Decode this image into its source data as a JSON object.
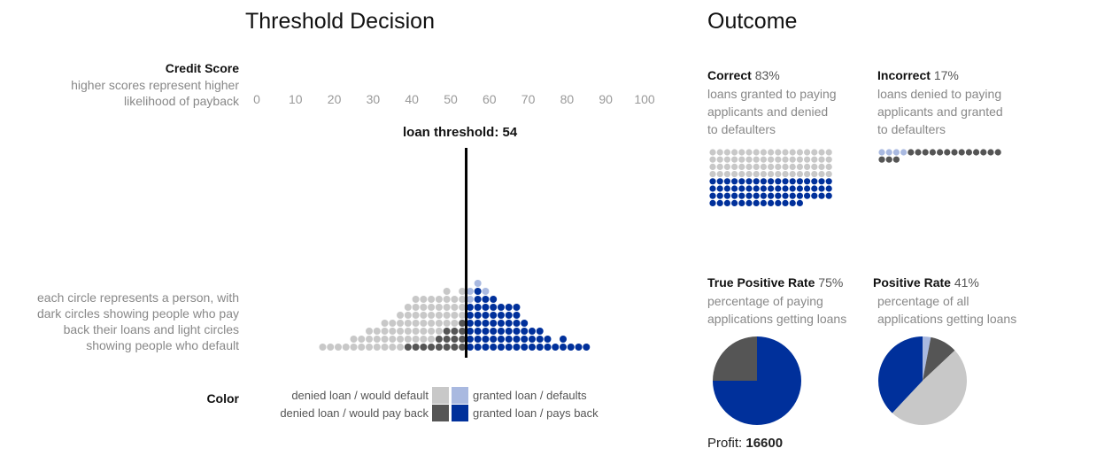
{
  "threshold": {
    "title": "Threshold Decision",
    "credit_score_label": "Credit Score",
    "credit_score_desc_1": "higher scores represent higher",
    "credit_score_desc_2": "likelihood of payback",
    "axis_ticks": [
      "0",
      "10",
      "20",
      "30",
      "40",
      "50",
      "60",
      "70",
      "80",
      "90",
      "100"
    ],
    "threshold_label": "loan threshold:",
    "threshold_value": 54,
    "circle_desc": [
      "each circle represents a person, with",
      "dark circles showing people who pay",
      "back their loans and light circles",
      "showing people who default"
    ],
    "color_label": "Color",
    "legend": {
      "denied_default": "denied loan / would default",
      "denied_pay": "denied loan / would pay back",
      "granted_default": "granted loan / defaults",
      "granted_pay": "granted loan / pays back"
    }
  },
  "colors": {
    "denied_default": "#c8c8c8",
    "denied_pay": "#555555",
    "granted_default": "#a9b9e0",
    "granted_pay": "#00309b"
  },
  "outcome": {
    "title": "Outcome",
    "correct": {
      "label": "Correct",
      "value": "83%",
      "desc": [
        "loans granted to paying",
        "applicants and denied",
        "to defaulters"
      ]
    },
    "incorrect": {
      "label": "Incorrect",
      "value": "17%",
      "desc": [
        "loans denied to paying",
        "applicants and granted",
        "to defaulters"
      ]
    },
    "tpr": {
      "label": "True Positive Rate",
      "value": "75%",
      "desc": [
        "percentage of paying",
        "applications getting loans"
      ]
    },
    "pos_rate": {
      "label": "Positive Rate",
      "value": "41%",
      "desc": [
        "percentage of all",
        "applications getting loans"
      ]
    },
    "profit_label": "Profit:",
    "profit_value": "16600"
  },
  "chart_data": [
    {
      "type": "scatter",
      "title": "Threshold Decision",
      "xlabel": "Credit Score",
      "xlim": [
        0,
        100
      ],
      "x_ticks": [
        0,
        10,
        20,
        30,
        40,
        50,
        60,
        70,
        80,
        90,
        100
      ],
      "threshold": 54,
      "columns": [
        {
          "x": 17,
          "default": 1,
          "pay": 0
        },
        {
          "x": 19,
          "default": 1,
          "pay": 0
        },
        {
          "x": 21,
          "default": 1,
          "pay": 0
        },
        {
          "x": 23,
          "default": 1,
          "pay": 0
        },
        {
          "x": 25,
          "default": 2,
          "pay": 0
        },
        {
          "x": 27,
          "default": 2,
          "pay": 0
        },
        {
          "x": 29,
          "default": 3,
          "pay": 0
        },
        {
          "x": 31,
          "default": 3,
          "pay": 0
        },
        {
          "x": 33,
          "default": 4,
          "pay": 0
        },
        {
          "x": 35,
          "default": 4,
          "pay": 0
        },
        {
          "x": 37,
          "default": 5,
          "pay": 0
        },
        {
          "x": 39,
          "default": 5,
          "pay": 1
        },
        {
          "x": 41,
          "default": 6,
          "pay": 1
        },
        {
          "x": 43,
          "default": 6,
          "pay": 1
        },
        {
          "x": 45,
          "default": 6,
          "pay": 1
        },
        {
          "x": 47,
          "default": 5,
          "pay": 2
        },
        {
          "x": 49,
          "default": 5,
          "pay": 3
        },
        {
          "x": 51,
          "default": 4,
          "pay": 3
        },
        {
          "x": 53,
          "default": 4,
          "pay": 4
        },
        {
          "x": 55,
          "default": 2,
          "pay": 6
        },
        {
          "x": 57,
          "default": 1,
          "pay": 8
        },
        {
          "x": 59,
          "default": 1,
          "pay": 7
        },
        {
          "x": 61,
          "default": 0,
          "pay": 7
        },
        {
          "x": 63,
          "default": 0,
          "pay": 6
        },
        {
          "x": 65,
          "default": 0,
          "pay": 6
        },
        {
          "x": 67,
          "default": 0,
          "pay": 6
        },
        {
          "x": 69,
          "default": 0,
          "pay": 4
        },
        {
          "x": 71,
          "default": 0,
          "pay": 3
        },
        {
          "x": 73,
          "default": 0,
          "pay": 3
        },
        {
          "x": 75,
          "default": 0,
          "pay": 2
        },
        {
          "x": 77,
          "default": 0,
          "pay": 1
        },
        {
          "x": 79,
          "default": 0,
          "pay": 2
        },
        {
          "x": 81,
          "default": 0,
          "pay": 1
        },
        {
          "x": 83,
          "default": 0,
          "pay": 1
        },
        {
          "x": 85,
          "default": 0,
          "pay": 1
        }
      ]
    },
    {
      "type": "pie",
      "title": "True Positive Rate",
      "slices": [
        {
          "label": "granted loan / pays back",
          "value": 75,
          "color": "#00309b"
        },
        {
          "label": "denied loan / would pay back",
          "value": 25,
          "color": "#555555"
        }
      ]
    },
    {
      "type": "pie",
      "title": "Positive Rate",
      "slices": [
        {
          "label": "granted loan / defaults",
          "value": 3,
          "color": "#a9b9e0"
        },
        {
          "label": "denied loan / would pay back",
          "value": 10,
          "color": "#555555"
        },
        {
          "label": "denied loan / would default",
          "value": 49,
          "color": "#c8c8c8"
        },
        {
          "label": "granted loan / pays back",
          "value": 38,
          "color": "#00309b"
        }
      ]
    }
  ]
}
